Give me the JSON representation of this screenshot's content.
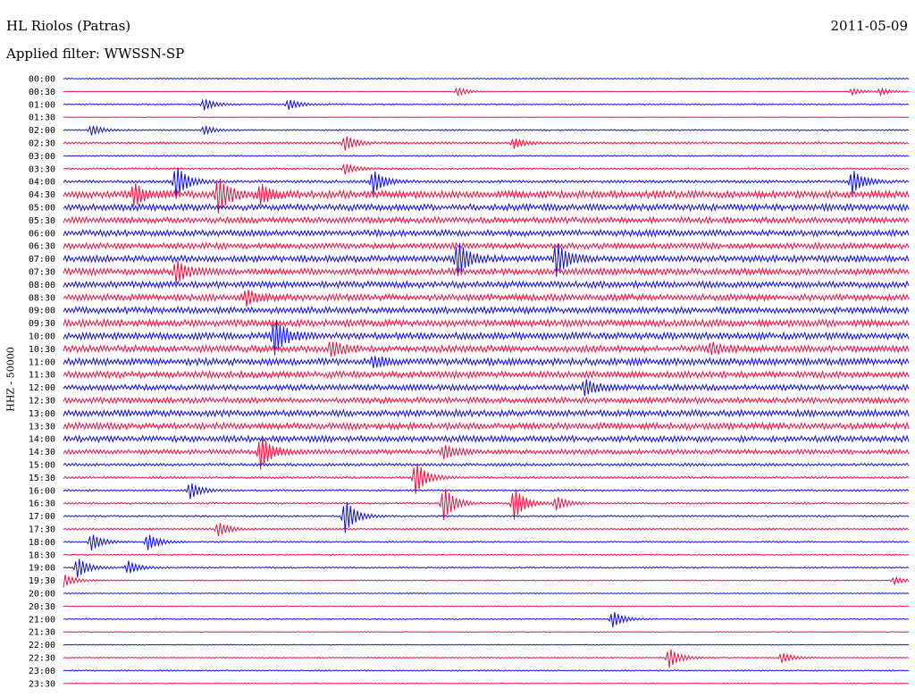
{
  "header": {
    "station": "HL Riolos (Patras)",
    "date": "2011-05-09",
    "filter": "Applied filter: WWSSN-SP"
  },
  "colors": {
    "even_trace": "#1010e0",
    "odd_trace": "#ee1040"
  },
  "chart_data": {
    "type": "line",
    "title": "HL Riolos (Patras)",
    "subtitle": "Applied filter: WWSSN-SP",
    "ylabel": "HHZ - 50000",
    "row_labels": [
      "00:00",
      "00:30",
      "01:00",
      "01:30",
      "02:00",
      "02:30",
      "03:00",
      "03:30",
      "04:00",
      "04:30",
      "05:00",
      "05:30",
      "06:00",
      "06:30",
      "07:00",
      "07:30",
      "08:00",
      "08:30",
      "09:00",
      "09:30",
      "10:00",
      "10:30",
      "11:00",
      "11:30",
      "12:00",
      "12:30",
      "13:00",
      "13:30",
      "14:00",
      "14:30",
      "15:00",
      "15:30",
      "16:00",
      "16:30",
      "17:00",
      "17:30",
      "18:00",
      "18:30",
      "19:00",
      "19:30",
      "20:00",
      "20:30",
      "21:00",
      "21:30",
      "22:00",
      "22:30",
      "23:00",
      "23:30"
    ],
    "noise_level": [
      0.6,
      0.3,
      0.7,
      0.3,
      0.8,
      1.2,
      0.7,
      1.0,
      1.6,
      4.0,
      3.6,
      3.4,
      3.4,
      3.2,
      3.6,
      3.6,
      3.6,
      3.6,
      3.6,
      3.8,
      3.8,
      3.8,
      3.8,
      3.6,
      3.2,
      3.2,
      3.6,
      3.6,
      3.4,
      2.6,
      1.6,
      1.2,
      1.0,
      1.0,
      1.0,
      1.0,
      0.8,
      0.6,
      0.8,
      0.6,
      0.5,
      0.5,
      0.6,
      0.4,
      0.5,
      0.6,
      0.7,
      0.4
    ],
    "events": [
      {
        "row": 1,
        "minute": 14,
        "amp": 0.25
      },
      {
        "row": 1,
        "minute": 28,
        "amp": 0.2
      },
      {
        "row": 1,
        "minute": 29,
        "amp": 0.2
      },
      {
        "row": 2,
        "minute": 5,
        "amp": 0.35
      },
      {
        "row": 2,
        "minute": 8,
        "amp": 0.3
      },
      {
        "row": 4,
        "minute": 1,
        "amp": 0.3
      },
      {
        "row": 4,
        "minute": 5,
        "amp": 0.25
      },
      {
        "row": 5,
        "minute": 10,
        "amp": 0.45
      },
      {
        "row": 5,
        "minute": 16,
        "amp": 0.3
      },
      {
        "row": 7,
        "minute": 10,
        "amp": 0.3
      },
      {
        "row": 8,
        "minute": 4,
        "amp": 1.0
      },
      {
        "row": 8,
        "minute": 11,
        "amp": 0.7
      },
      {
        "row": 8,
        "minute": 28,
        "amp": 0.7
      },
      {
        "row": 9,
        "minute": 2.5,
        "amp": 0.6
      },
      {
        "row": 9,
        "minute": 5.5,
        "amp": 1.0
      },
      {
        "row": 9,
        "minute": 7,
        "amp": 0.5
      },
      {
        "row": 14,
        "minute": 14,
        "amp": 1.0
      },
      {
        "row": 14,
        "minute": 17.5,
        "amp": 1.0
      },
      {
        "row": 15,
        "minute": 4,
        "amp": 0.6
      },
      {
        "row": 17,
        "minute": 6.5,
        "amp": 0.4
      },
      {
        "row": 20,
        "minute": 7.5,
        "amp": 1.0
      },
      {
        "row": 21,
        "minute": 9.5,
        "amp": 0.4
      },
      {
        "row": 21,
        "minute": 23,
        "amp": 0.3
      },
      {
        "row": 22,
        "minute": 11,
        "amp": 0.3
      },
      {
        "row": 24,
        "minute": 18.5,
        "amp": 0.4
      },
      {
        "row": 29,
        "minute": 7,
        "amp": 1.0
      },
      {
        "row": 29,
        "minute": 13.5,
        "amp": 0.4
      },
      {
        "row": 31,
        "minute": 12.5,
        "amp": 1.0
      },
      {
        "row": 32,
        "minute": 4.5,
        "amp": 0.5
      },
      {
        "row": 33,
        "minute": 13.5,
        "amp": 1.0
      },
      {
        "row": 33,
        "minute": 16,
        "amp": 1.0
      },
      {
        "row": 33,
        "minute": 17.5,
        "amp": 0.4
      },
      {
        "row": 34,
        "minute": 10,
        "amp": 1.0
      },
      {
        "row": 35,
        "minute": 5.5,
        "amp": 0.4
      },
      {
        "row": 36,
        "minute": 1,
        "amp": 0.5
      },
      {
        "row": 36,
        "minute": 3,
        "amp": 0.5
      },
      {
        "row": 38,
        "minute": 0.5,
        "amp": 0.6
      },
      {
        "row": 38,
        "minute": 2.3,
        "amp": 0.4
      },
      {
        "row": 39,
        "minute": 0,
        "amp": 0.4
      },
      {
        "row": 39,
        "minute": 29.5,
        "amp": 0.2
      },
      {
        "row": 42,
        "minute": 19.5,
        "amp": 0.5
      },
      {
        "row": 45,
        "minute": 21.5,
        "amp": 0.6
      },
      {
        "row": 45,
        "minute": 25.5,
        "amp": 0.3
      }
    ],
    "x_range_minutes": [
      0,
      30
    ]
  }
}
